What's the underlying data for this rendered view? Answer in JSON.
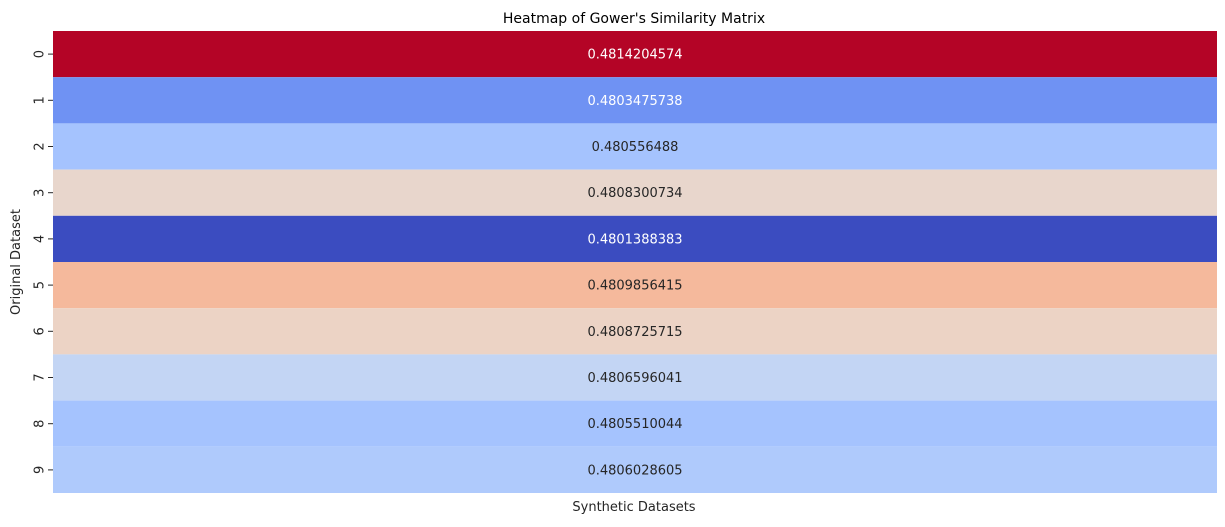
{
  "chart_data": {
    "type": "heatmap",
    "title": "Heatmap of Gower's Similarity Matrix",
    "xlabel": "Synthetic Datasets",
    "ylabel": "Original Dataset",
    "row_labels": [
      "0",
      "1",
      "2",
      "3",
      "4",
      "5",
      "6",
      "7",
      "8",
      "9"
    ],
    "column_labels": [
      ""
    ],
    "values": [
      [
        0.4814204574
      ],
      [
        0.4803475738
      ],
      [
        0.480556488
      ],
      [
        0.4808300734
      ],
      [
        0.4801388383
      ],
      [
        0.4809856415
      ],
      [
        0.4808725715
      ],
      [
        0.4806596041
      ],
      [
        0.4805510044
      ],
      [
        0.4806028605
      ]
    ],
    "value_labels": [
      "0.4814204574",
      "0.4803475738",
      "0.480556488",
      "0.4808300734",
      "0.4801388383",
      "0.4809856415",
      "0.4808725715",
      "0.4806596041",
      "0.4805510044",
      "0.4806028605"
    ],
    "cell_colors": [
      "#b40426",
      "#6f92f3",
      "#a5c3fe",
      "#e8d6cc",
      "#3b4cc0",
      "#f5b99c",
      "#ecd3c5",
      "#c3d5f4",
      "#a5c3fe",
      "#afcafc"
    ],
    "value_label_colors": [
      "#ffffff",
      "#ffffff",
      "#262626",
      "#262626",
      "#ffffff",
      "#262626",
      "#262626",
      "#262626",
      "#262626",
      "#262626"
    ],
    "colormap": "coolwarm",
    "colorbar": false,
    "grid": false
  }
}
